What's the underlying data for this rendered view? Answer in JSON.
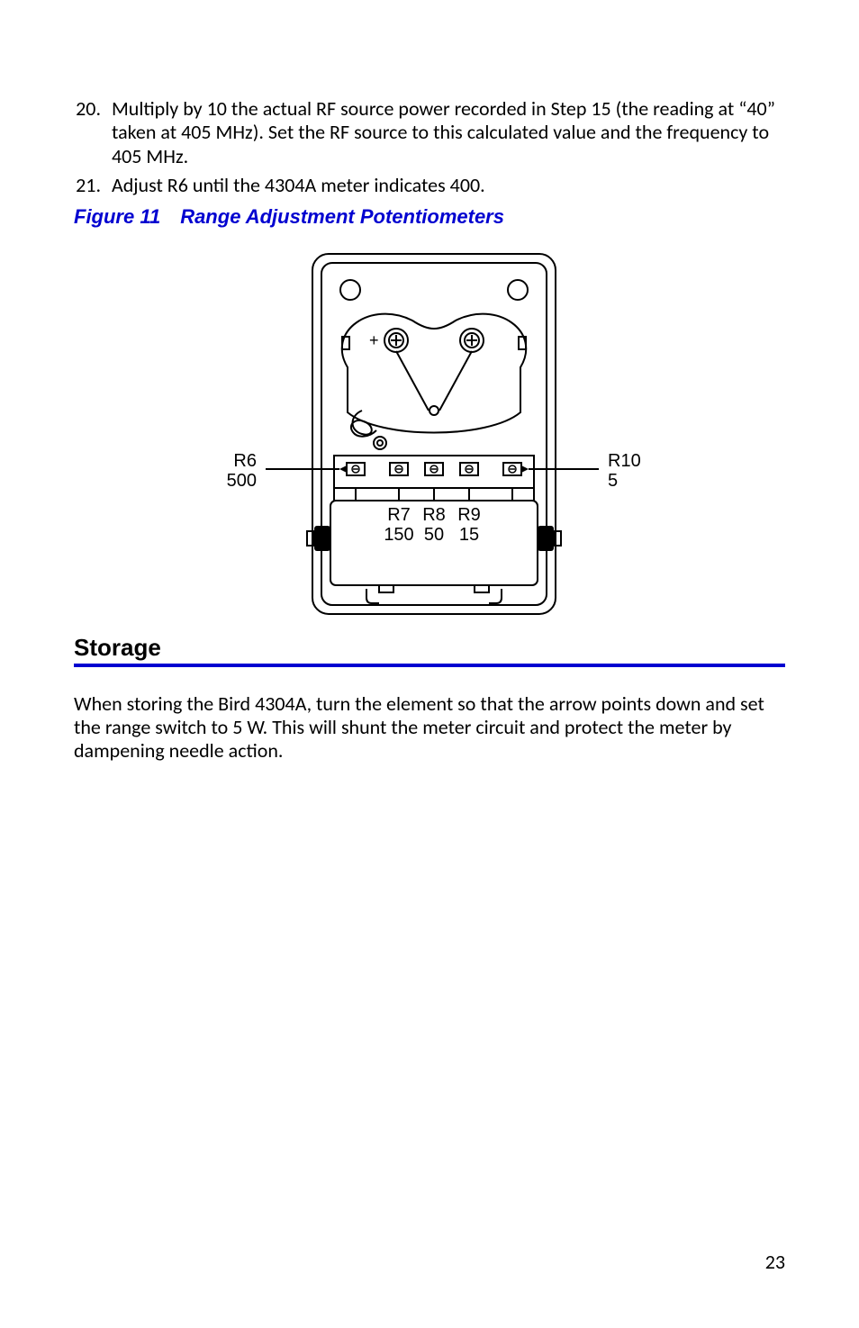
{
  "list": {
    "item20": {
      "num": "20.",
      "text": "Multiply by 10 the actual RF source power recorded in Step 15 (the reading at “40” taken at 405 MHz). Set the RF source to this calculated value and the frequency to 405 MHz."
    },
    "item21": {
      "num": "21.",
      "text": "Adjust R6 until the 4304A meter indicates 400."
    }
  },
  "figure": {
    "label": "Figure 11",
    "title": "Range Adjustment Potentiometers",
    "callouts": {
      "left_ref": "R6",
      "left_val": "500",
      "right_ref": "R10",
      "right_val": "5",
      "c1_ref": "R7",
      "c1_val": "150",
      "c2_ref": "R8",
      "c2_val": "50",
      "c3_ref": "R9",
      "c3_val": "15",
      "plus": "+"
    },
    "style": {
      "stroke": "#000000",
      "stroke_width": 2,
      "font_family": "Arial, Helvetica, sans-serif",
      "font_size": 20,
      "fill_bg": "#ffffff"
    }
  },
  "section": {
    "heading": "Storage",
    "para": "When storing the Bird 4304A, turn the element so that the arrow points down and set the range switch to 5 W. This will shunt the meter circuit and protect the meter by dampening needle action."
  },
  "page_number": "23"
}
